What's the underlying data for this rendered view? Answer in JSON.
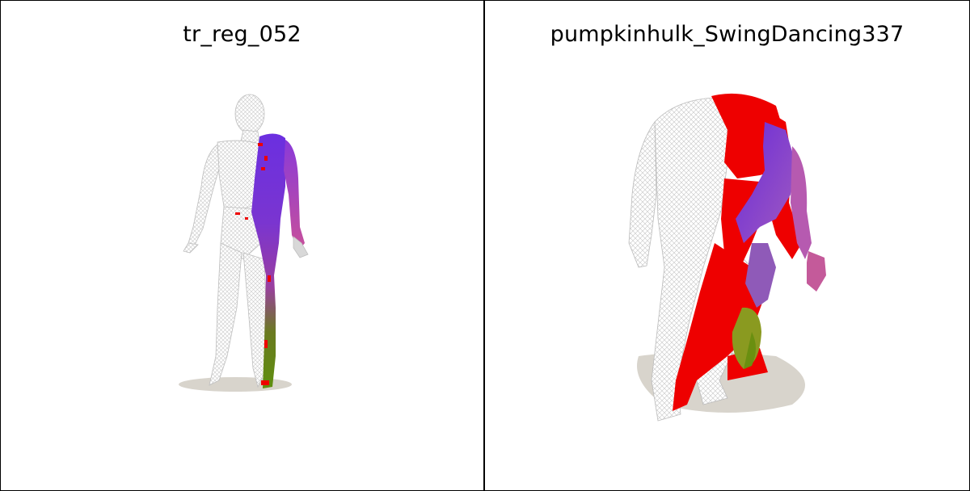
{
  "panels": [
    {
      "title": "tr_reg_052",
      "figure": "human-body-mesh"
    },
    {
      "title": "pumpkinhulk_SwingDancing337",
      "figure": "hulk-body-mesh"
    }
  ],
  "colors": {
    "wireframe": "#dcdcdc",
    "shadow": "#d8d4cc",
    "red": "#ee0000",
    "purple": "#7a2bd6",
    "magenta": "#b84bb0",
    "green": "#6a8f10"
  }
}
